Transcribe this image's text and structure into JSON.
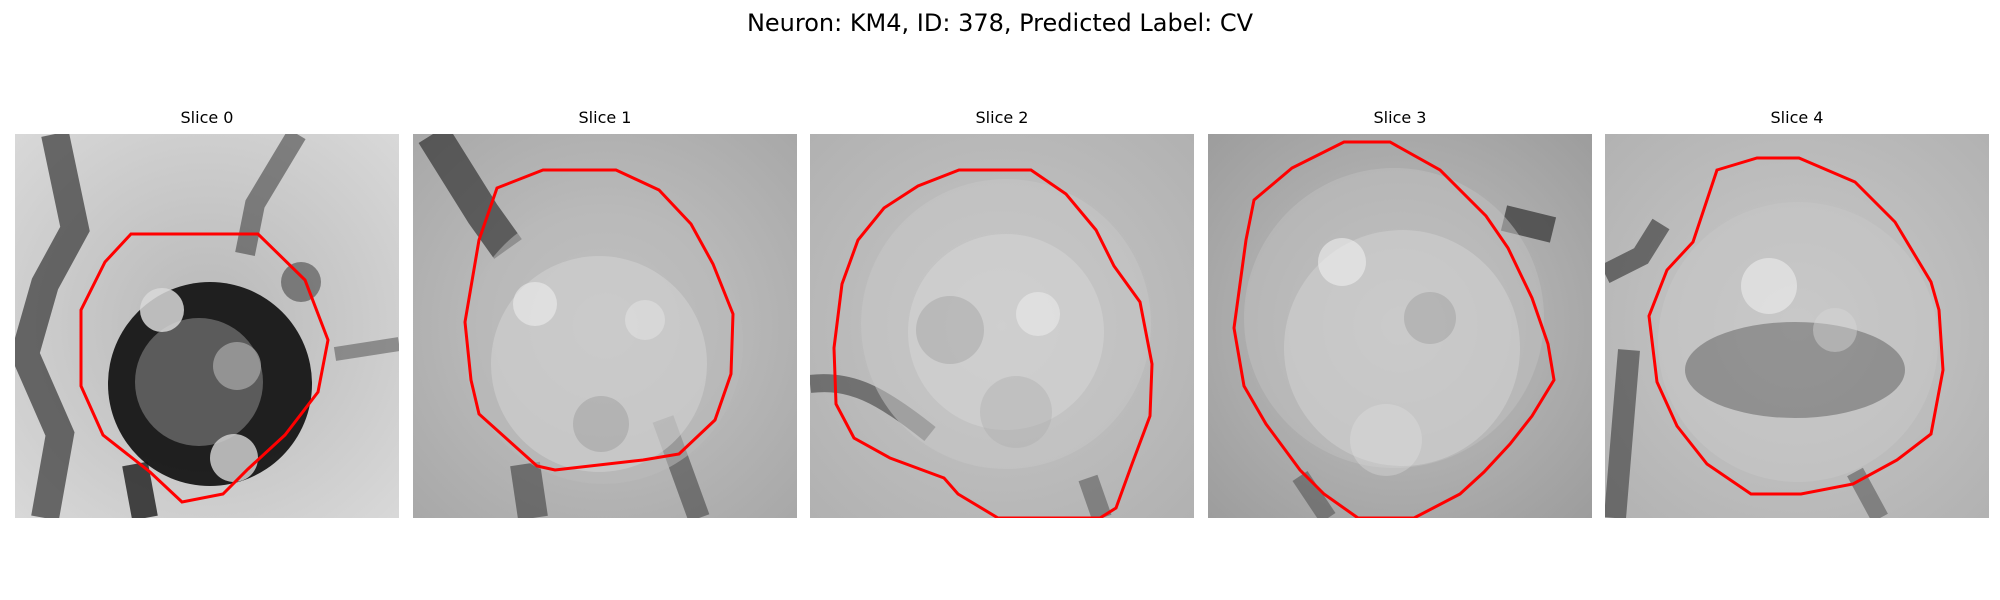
{
  "figure": {
    "title": "Neuron: KM4, ID: 378, Predicted Label: CV"
  },
  "panels": [
    {
      "title": "Slice 0"
    },
    {
      "title": "Slice 1"
    },
    {
      "title": "Slice 2"
    },
    {
      "title": "Slice 3"
    },
    {
      "title": "Slice 4"
    }
  ],
  "colors": {
    "contour": "#ff0000",
    "background": "#ffffff"
  }
}
